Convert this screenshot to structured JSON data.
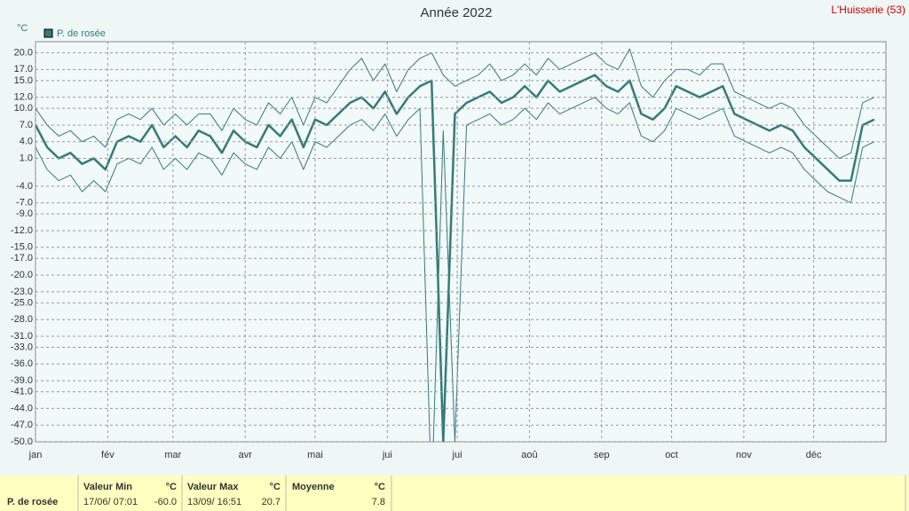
{
  "chart_data": {
    "type": "line",
    "title": "Année 2022",
    "station": "L'Huisserie (53)",
    "y_unit": "°C",
    "x": [
      1,
      6,
      11,
      16,
      21,
      26,
      31,
      36,
      41,
      46,
      51,
      56,
      61,
      66,
      71,
      76,
      81,
      86,
      91,
      96,
      101,
      106,
      111,
      116,
      121,
      126,
      131,
      136,
      141,
      146,
      151,
      156,
      161,
      166,
      171,
      176,
      181,
      186,
      191,
      196,
      201,
      206,
      211,
      216,
      221,
      226,
      231,
      236,
      241,
      246,
      251,
      256,
      261,
      266,
      271,
      276,
      281,
      286,
      291,
      296,
      301,
      306,
      311,
      316,
      321,
      326,
      331,
      336,
      341,
      346,
      351,
      356,
      361
    ],
    "xlim": [
      1,
      366
    ],
    "xticks": [
      {
        "value": 1,
        "label": "jan"
      },
      {
        "value": 32,
        "label": "fév"
      },
      {
        "value": 60,
        "label": "mar"
      },
      {
        "value": 91,
        "label": "avr"
      },
      {
        "value": 121,
        "label": "mai"
      },
      {
        "value": 152,
        "label": "jui"
      },
      {
        "value": 182,
        "label": "jui"
      },
      {
        "value": 213,
        "label": "aoû"
      },
      {
        "value": 244,
        "label": "sep"
      },
      {
        "value": 274,
        "label": "oct"
      },
      {
        "value": 305,
        "label": "nov"
      },
      {
        "value": 335,
        "label": "déc"
      }
    ],
    "ylim": [
      -50,
      22
    ],
    "yticks": [
      {
        "value": 20,
        "label": "20.0"
      },
      {
        "value": 17,
        "label": "17.0"
      },
      {
        "value": 15,
        "label": "15.0"
      },
      {
        "value": 12,
        "label": "12.0"
      },
      {
        "value": 10,
        "label": "10.0"
      },
      {
        "value": 7,
        "label": "7.0"
      },
      {
        "value": 4,
        "label": "4.0"
      },
      {
        "value": 1,
        "label": "1.0"
      },
      {
        "value": -4,
        "label": "-4.0"
      },
      {
        "value": -7,
        "label": "-7.0"
      },
      {
        "value": -9,
        "label": "-9.0"
      },
      {
        "value": -12,
        "label": "-12.0"
      },
      {
        "value": -15,
        "label": "-15.0"
      },
      {
        "value": -17,
        "label": "-17.0"
      },
      {
        "value": -20,
        "label": "-20.0"
      },
      {
        "value": -23,
        "label": "-23.0"
      },
      {
        "value": -25,
        "label": "-25.0"
      },
      {
        "value": -28,
        "label": "-28.0"
      },
      {
        "value": -31,
        "label": "-31.0"
      },
      {
        "value": -33,
        "label": "-33.0"
      },
      {
        "value": -36,
        "label": "-36.0"
      },
      {
        "value": -39,
        "label": "-39.0"
      },
      {
        "value": -41,
        "label": "-41.0"
      },
      {
        "value": -44,
        "label": "-44.0"
      },
      {
        "value": -47,
        "label": "-47.0"
      },
      {
        "value": -50,
        "label": "-50.0"
      }
    ],
    "grid": true,
    "series": [
      {
        "name": "P. de rosée",
        "color": "#357a7a",
        "values": [
          7,
          3,
          1,
          2,
          0,
          1,
          -1,
          4,
          5,
          4,
          7,
          3,
          5,
          3,
          6,
          5,
          2,
          6,
          4,
          3,
          7,
          5,
          8,
          3,
          8,
          7,
          9,
          11,
          12,
          10,
          13,
          9,
          12,
          14,
          15,
          -50,
          9,
          11,
          12,
          13,
          11,
          12,
          14,
          12,
          15,
          13,
          14,
          15,
          16,
          14,
          13,
          15,
          9,
          8,
          10,
          14,
          13,
          12,
          13,
          14,
          9,
          8,
          7,
          6,
          7,
          6,
          3,
          1,
          -1,
          -3,
          -3,
          7,
          8
        ],
        "low": [
          3,
          -1,
          -3,
          -2,
          -5,
          -3,
          -5,
          0,
          1,
          0,
          3,
          -1,
          1,
          -1,
          2,
          1,
          -2,
          2,
          0,
          -1,
          3,
          1,
          4,
          -1,
          4,
          3,
          5,
          7,
          8,
          6,
          9,
          5,
          8,
          10,
          -60,
          6,
          -50,
          7,
          8,
          9,
          7,
          8,
          10,
          8,
          11,
          9,
          10,
          11,
          12,
          10,
          9,
          11,
          5,
          4,
          6,
          10,
          9,
          8,
          9,
          10,
          5,
          4,
          3,
          2,
          3,
          2,
          -1,
          -3,
          -5,
          -6,
          -7,
          3,
          4
        ],
        "high": [
          10,
          7,
          5,
          6,
          4,
          5,
          3,
          8,
          9,
          8,
          10,
          7,
          9,
          7,
          9,
          9,
          6,
          10,
          8,
          7,
          11,
          9,
          12,
          7,
          12,
          11,
          14,
          17,
          19,
          15,
          18,
          13,
          17,
          19,
          20,
          16,
          14,
          15,
          16,
          18,
          15,
          16,
          18,
          16,
          19,
          17,
          18,
          19,
          20,
          18,
          17,
          20.7,
          14,
          12,
          15,
          17,
          17,
          16,
          18,
          18,
          13,
          12,
          11,
          10,
          11,
          10,
          7,
          5,
          3,
          1,
          2,
          11,
          12
        ]
      }
    ]
  },
  "summary": {
    "name": "P. de rosée",
    "columns": [
      {
        "title": "Valeur Min",
        "unit": "°C",
        "date": "17/06/ 07:01",
        "value": "-60.0"
      },
      {
        "title": "Valeur Max",
        "unit": "°C",
        "date": "13/09/ 16:51",
        "value": "20.7"
      },
      {
        "title": "Moyenne",
        "unit": "°C",
        "value": "7.8"
      }
    ]
  }
}
